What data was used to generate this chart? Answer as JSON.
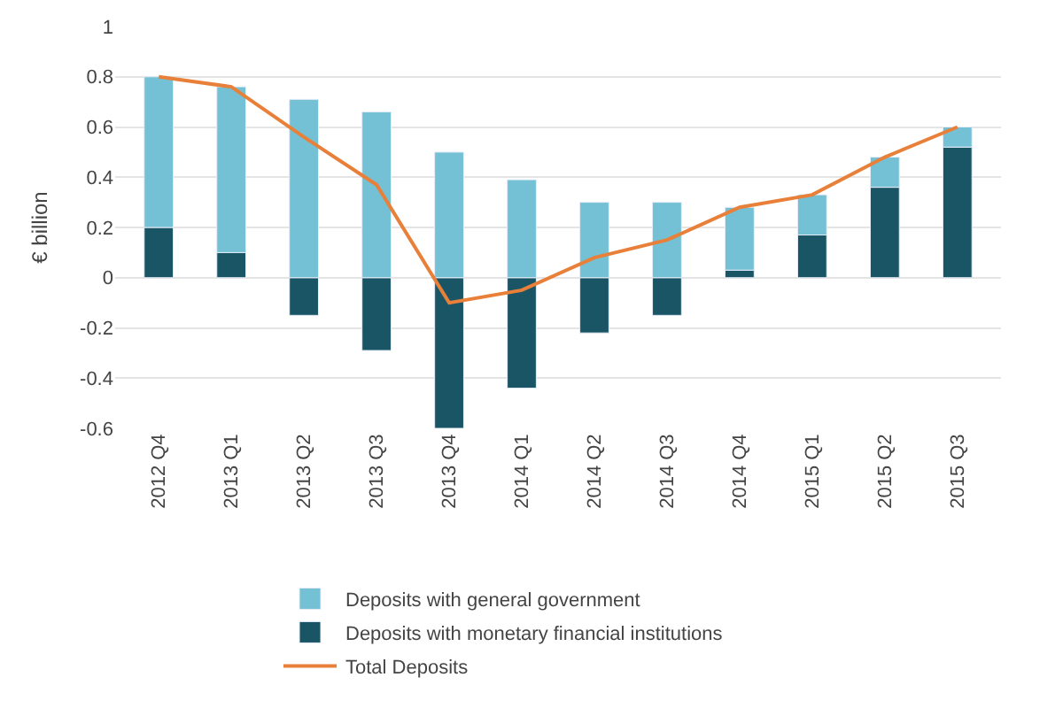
{
  "chart_data": {
    "type": "bar",
    "stacked": true,
    "ylabel": "€ billion",
    "categories": [
      "2012 Q4",
      "2013 Q1",
      "2013 Q2",
      "2013 Q3",
      "2013 Q4",
      "2014 Q1",
      "2014 Q2",
      "2014 Q3",
      "2014 Q4",
      "2015 Q1",
      "2015 Q2",
      "2015 Q3"
    ],
    "series": [
      {
        "name": "Deposits with monetary financial institutions",
        "color": "#1a5566",
        "values": [
          0.2,
          0.1,
          -0.15,
          -0.29,
          -0.6,
          -0.44,
          -0.22,
          -0.15,
          0.03,
          0.17,
          0.36,
          0.52
        ]
      },
      {
        "name": "Deposits with general government",
        "color": "#74c0d4",
        "values": [
          0.6,
          0.66,
          0.71,
          0.66,
          0.5,
          0.39,
          0.3,
          0.3,
          0.25,
          0.16,
          0.12,
          0.08
        ]
      },
      {
        "name": "Total Deposits",
        "type": "line",
        "color": "#e8803a",
        "values": [
          0.8,
          0.76,
          0.56,
          0.37,
          -0.1,
          -0.05,
          0.08,
          0.15,
          0.28,
          0.33,
          0.48,
          0.6
        ]
      }
    ],
    "ylim": [
      -0.6,
      1
    ],
    "yticks": [
      -0.6,
      -0.4,
      -0.2,
      0,
      0.2,
      0.4,
      0.6,
      0.8,
      1
    ],
    "grid": "y",
    "legend": "bottom",
    "marker": "none",
    "line_style": "solid"
  }
}
